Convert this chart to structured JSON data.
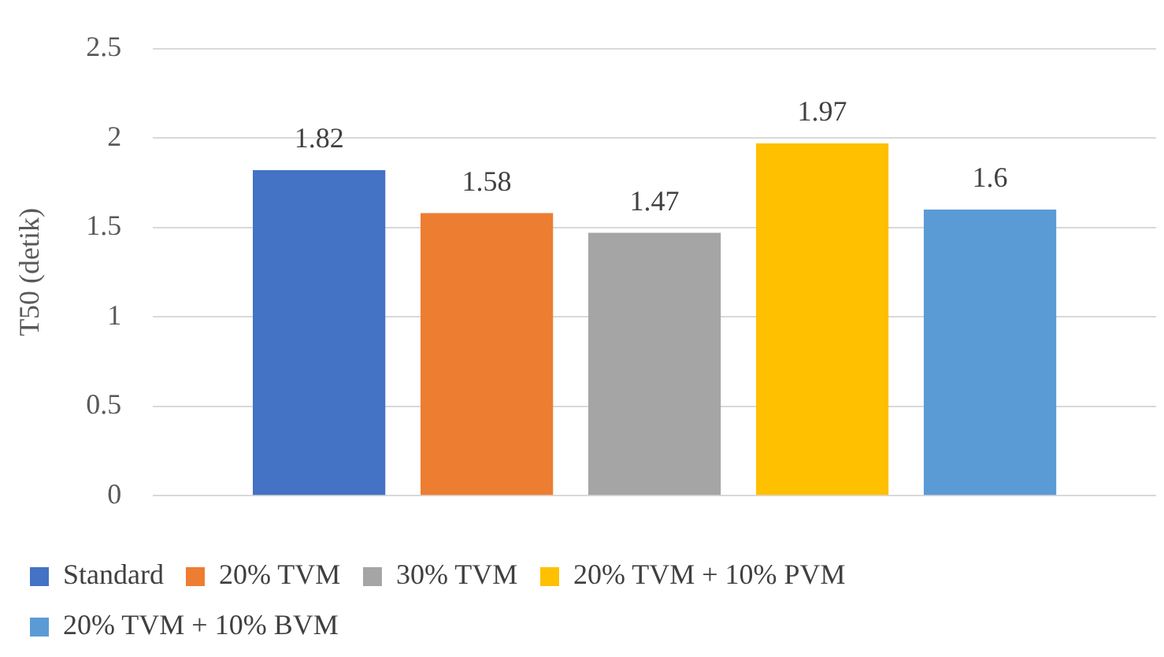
{
  "chart_data": {
    "type": "bar",
    "ylabel": "T50 (detik)",
    "categories": [
      null
    ],
    "series": [
      {
        "name": "Standard",
        "color": "#4472c4",
        "values": [
          1.82
        ]
      },
      {
        "name": "20% TVM",
        "color": "#ed7d31",
        "values": [
          1.58
        ]
      },
      {
        "name": "30% TVM",
        "color": "#a5a5a5",
        "values": [
          1.47
        ]
      },
      {
        "name": "20% TVM + 10% PVM",
        "color": "#ffc000",
        "values": [
          1.97
        ]
      },
      {
        "name": "20% TVM + 10% BVM",
        "color": "#5b9bd5",
        "values": [
          1.6
        ]
      }
    ],
    "ylim": [
      0,
      2.5
    ],
    "yticks": [
      0,
      0.5,
      1,
      1.5,
      2,
      2.5
    ],
    "grid": "y",
    "legend": "bottom",
    "data_labels": true
  }
}
